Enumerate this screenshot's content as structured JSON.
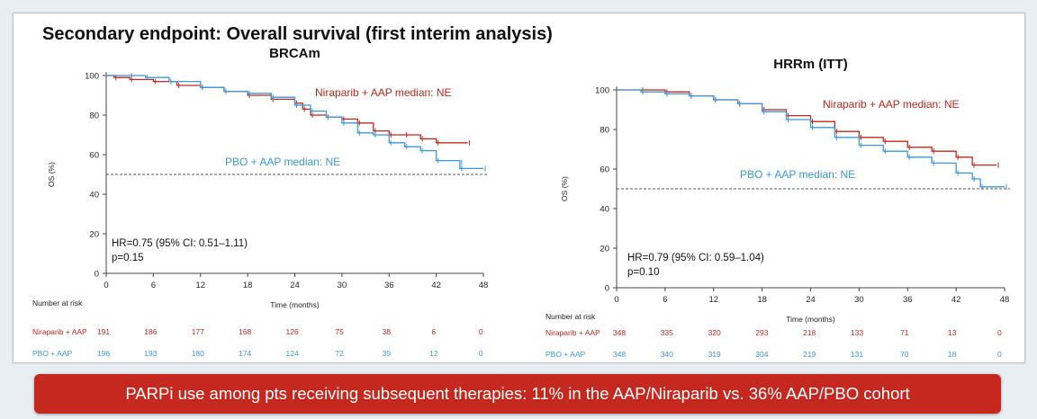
{
  "slide_title": "Secondary endpoint: Overall survival (first interim analysis)",
  "banner": "PARPi use among pts receiving subsequent therapies: 11% in the AAP/Niraparib vs. 36% AAP/PBO cohort",
  "colors": {
    "niraparib": "#c0281f",
    "pbo": "#3b97d8",
    "axis": "#444444",
    "reference": "#555555"
  },
  "chart_data": [
    {
      "type": "line",
      "title": "BRCAm",
      "xlabel": "Time (months)",
      "ylabel": "OS (%)",
      "xlim": [
        0,
        48
      ],
      "ylim": [
        0,
        100
      ],
      "x_ticks": [
        0,
        6,
        12,
        18,
        24,
        30,
        36,
        42,
        48
      ],
      "y_ticks": [
        0,
        20,
        40,
        60,
        80,
        100
      ],
      "reference_line_y": 50,
      "series": [
        {
          "name": "Niraparib + AAP",
          "label": "Niraparib + AAP median: NE",
          "points": [
            [
              0,
              100
            ],
            [
              1,
              99
            ],
            [
              3,
              98
            ],
            [
              6,
              97
            ],
            [
              9,
              95
            ],
            [
              12,
              94
            ],
            [
              15,
              92
            ],
            [
              18,
              90
            ],
            [
              21,
              88
            ],
            [
              24,
              86
            ],
            [
              25,
              83
            ],
            [
              26,
              80
            ],
            [
              28,
              79
            ],
            [
              30,
              78
            ],
            [
              32,
              76
            ],
            [
              34,
              72
            ],
            [
              36,
              70
            ],
            [
              38,
              70
            ],
            [
              40,
              68
            ],
            [
              42,
              66
            ],
            [
              46,
              66
            ]
          ]
        },
        {
          "name": "PBO + AAP",
          "label": "PBO + AAP median: NE",
          "points": [
            [
              0,
              100
            ],
            [
              3,
              100
            ],
            [
              5,
              99
            ],
            [
              8,
              97
            ],
            [
              12,
              94
            ],
            [
              15,
              92
            ],
            [
              18,
              91
            ],
            [
              21,
              89
            ],
            [
              24,
              85
            ],
            [
              26,
              82
            ],
            [
              28,
              79
            ],
            [
              30,
              76
            ],
            [
              32,
              71
            ],
            [
              34,
              70
            ],
            [
              36,
              66
            ],
            [
              38,
              64
            ],
            [
              40,
              62
            ],
            [
              42,
              57
            ],
            [
              45,
              56
            ],
            [
              45,
              53
            ],
            [
              48,
              53
            ]
          ]
        }
      ],
      "annotation": {
        "hr": "HR=0.75 (95% CI: 0.51–1.11)",
        "p": "p=0.15"
      },
      "risk_table": {
        "heading": "Number at risk",
        "rows": [
          {
            "label": "Niraparib + AAP",
            "values": [
              "191",
              "186",
              "177",
              "168",
              "126",
              "75",
              "38",
              "6",
              "0"
            ]
          },
          {
            "label": "PBO + AAP",
            "values": [
              "196",
              "193",
              "180",
              "174",
              "124",
              "72",
              "39",
              "12",
              "0"
            ]
          }
        ]
      }
    },
    {
      "type": "line",
      "title": "HRRm (ITT)",
      "xlabel": "Time (months)",
      "ylabel": "OS (%)",
      "xlim": [
        0,
        48
      ],
      "ylim": [
        0,
        100
      ],
      "x_ticks": [
        0,
        6,
        12,
        18,
        24,
        30,
        36,
        42,
        48
      ],
      "y_ticks": [
        0,
        20,
        40,
        60,
        80,
        100
      ],
      "reference_line_y": 50,
      "series": [
        {
          "name": "Niraparib + AAP",
          "label": "Niraparib + AAP median: NE",
          "points": [
            [
              0,
              100
            ],
            [
              3,
              100
            ],
            [
              6,
              99
            ],
            [
              9,
              97
            ],
            [
              12,
              95
            ],
            [
              15,
              93
            ],
            [
              18,
              90
            ],
            [
              21,
              87
            ],
            [
              24,
              84
            ],
            [
              27,
              79
            ],
            [
              30,
              76
            ],
            [
              33,
              74
            ],
            [
              36,
              71
            ],
            [
              39,
              69
            ],
            [
              42,
              66
            ],
            [
              44,
              62
            ],
            [
              47,
              62
            ]
          ]
        },
        {
          "name": "PBO + AAP",
          "label": "PBO + AAP median: NE",
          "points": [
            [
              0,
              100
            ],
            [
              3,
              99
            ],
            [
              6,
              98
            ],
            [
              9,
              97
            ],
            [
              12,
              95
            ],
            [
              15,
              93
            ],
            [
              18,
              89
            ],
            [
              21,
              85
            ],
            [
              24,
              81
            ],
            [
              27,
              76
            ],
            [
              30,
              72
            ],
            [
              33,
              69
            ],
            [
              36,
              66
            ],
            [
              39,
              63
            ],
            [
              42,
              58
            ],
            [
              44,
              55
            ],
            [
              45,
              51
            ],
            [
              48,
              51
            ]
          ]
        }
      ],
      "annotation": {
        "hr": "HR=0.79 (95% CI: 0.59–1.04)",
        "p": "p=0.10"
      },
      "risk_table": {
        "heading": "Number at risk",
        "rows": [
          {
            "label": "Niraparib + AAP",
            "values": [
              "348",
              "335",
              "320",
              "293",
              "218",
              "133",
              "71",
              "13",
              "0"
            ]
          },
          {
            "label": "PBO + AAP",
            "values": [
              "348",
              "340",
              "319",
              "304",
              "219",
              "131",
              "70",
              "18",
              "0"
            ]
          }
        ]
      }
    }
  ]
}
